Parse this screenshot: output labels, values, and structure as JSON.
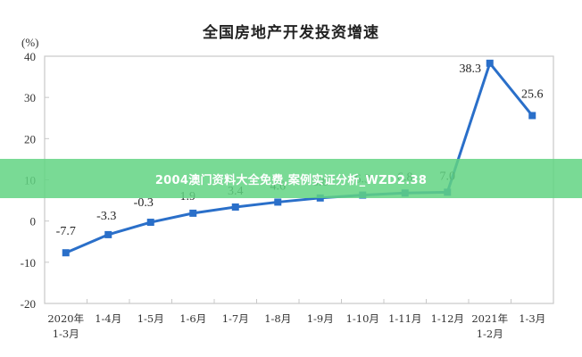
{
  "chart_data": {
    "type": "line",
    "title": "全国房地产开发投资增速",
    "ylabel": "(%)",
    "xlabel": "",
    "ylim": [
      -20,
      40
    ],
    "yticks": [
      40,
      30,
      20,
      10,
      0,
      -10,
      -20
    ],
    "grid": false,
    "legend": null,
    "categories": [
      "2020年\n1-3月",
      "1-4月",
      "1-5月",
      "1-6月",
      "1-7月",
      "1-8月",
      "1-9月",
      "1-10月",
      "1-11月",
      "1-12月",
      "2021年\n1-2月",
      "1-3月"
    ],
    "series": [
      {
        "name": "全国房地产开发投资增速",
        "values": [
          -7.7,
          -3.3,
          -0.3,
          1.9,
          3.4,
          4.6,
          5.6,
          6.3,
          6.8,
          7.0,
          38.3,
          25.6
        ],
        "color": "#2a6fc9"
      }
    ],
    "data_labels": [
      "-7.7",
      "-3.3",
      "-0.3",
      "1.9",
      "3.4",
      "4.6",
      "5.6",
      "6.3",
      "6.8",
      "7.0",
      "38.3",
      "25.6"
    ]
  },
  "overlay": {
    "banner_text": "2004澳门资料大全免费,案例实证分析_WZD2.38",
    "banner_color": "#62d482"
  }
}
